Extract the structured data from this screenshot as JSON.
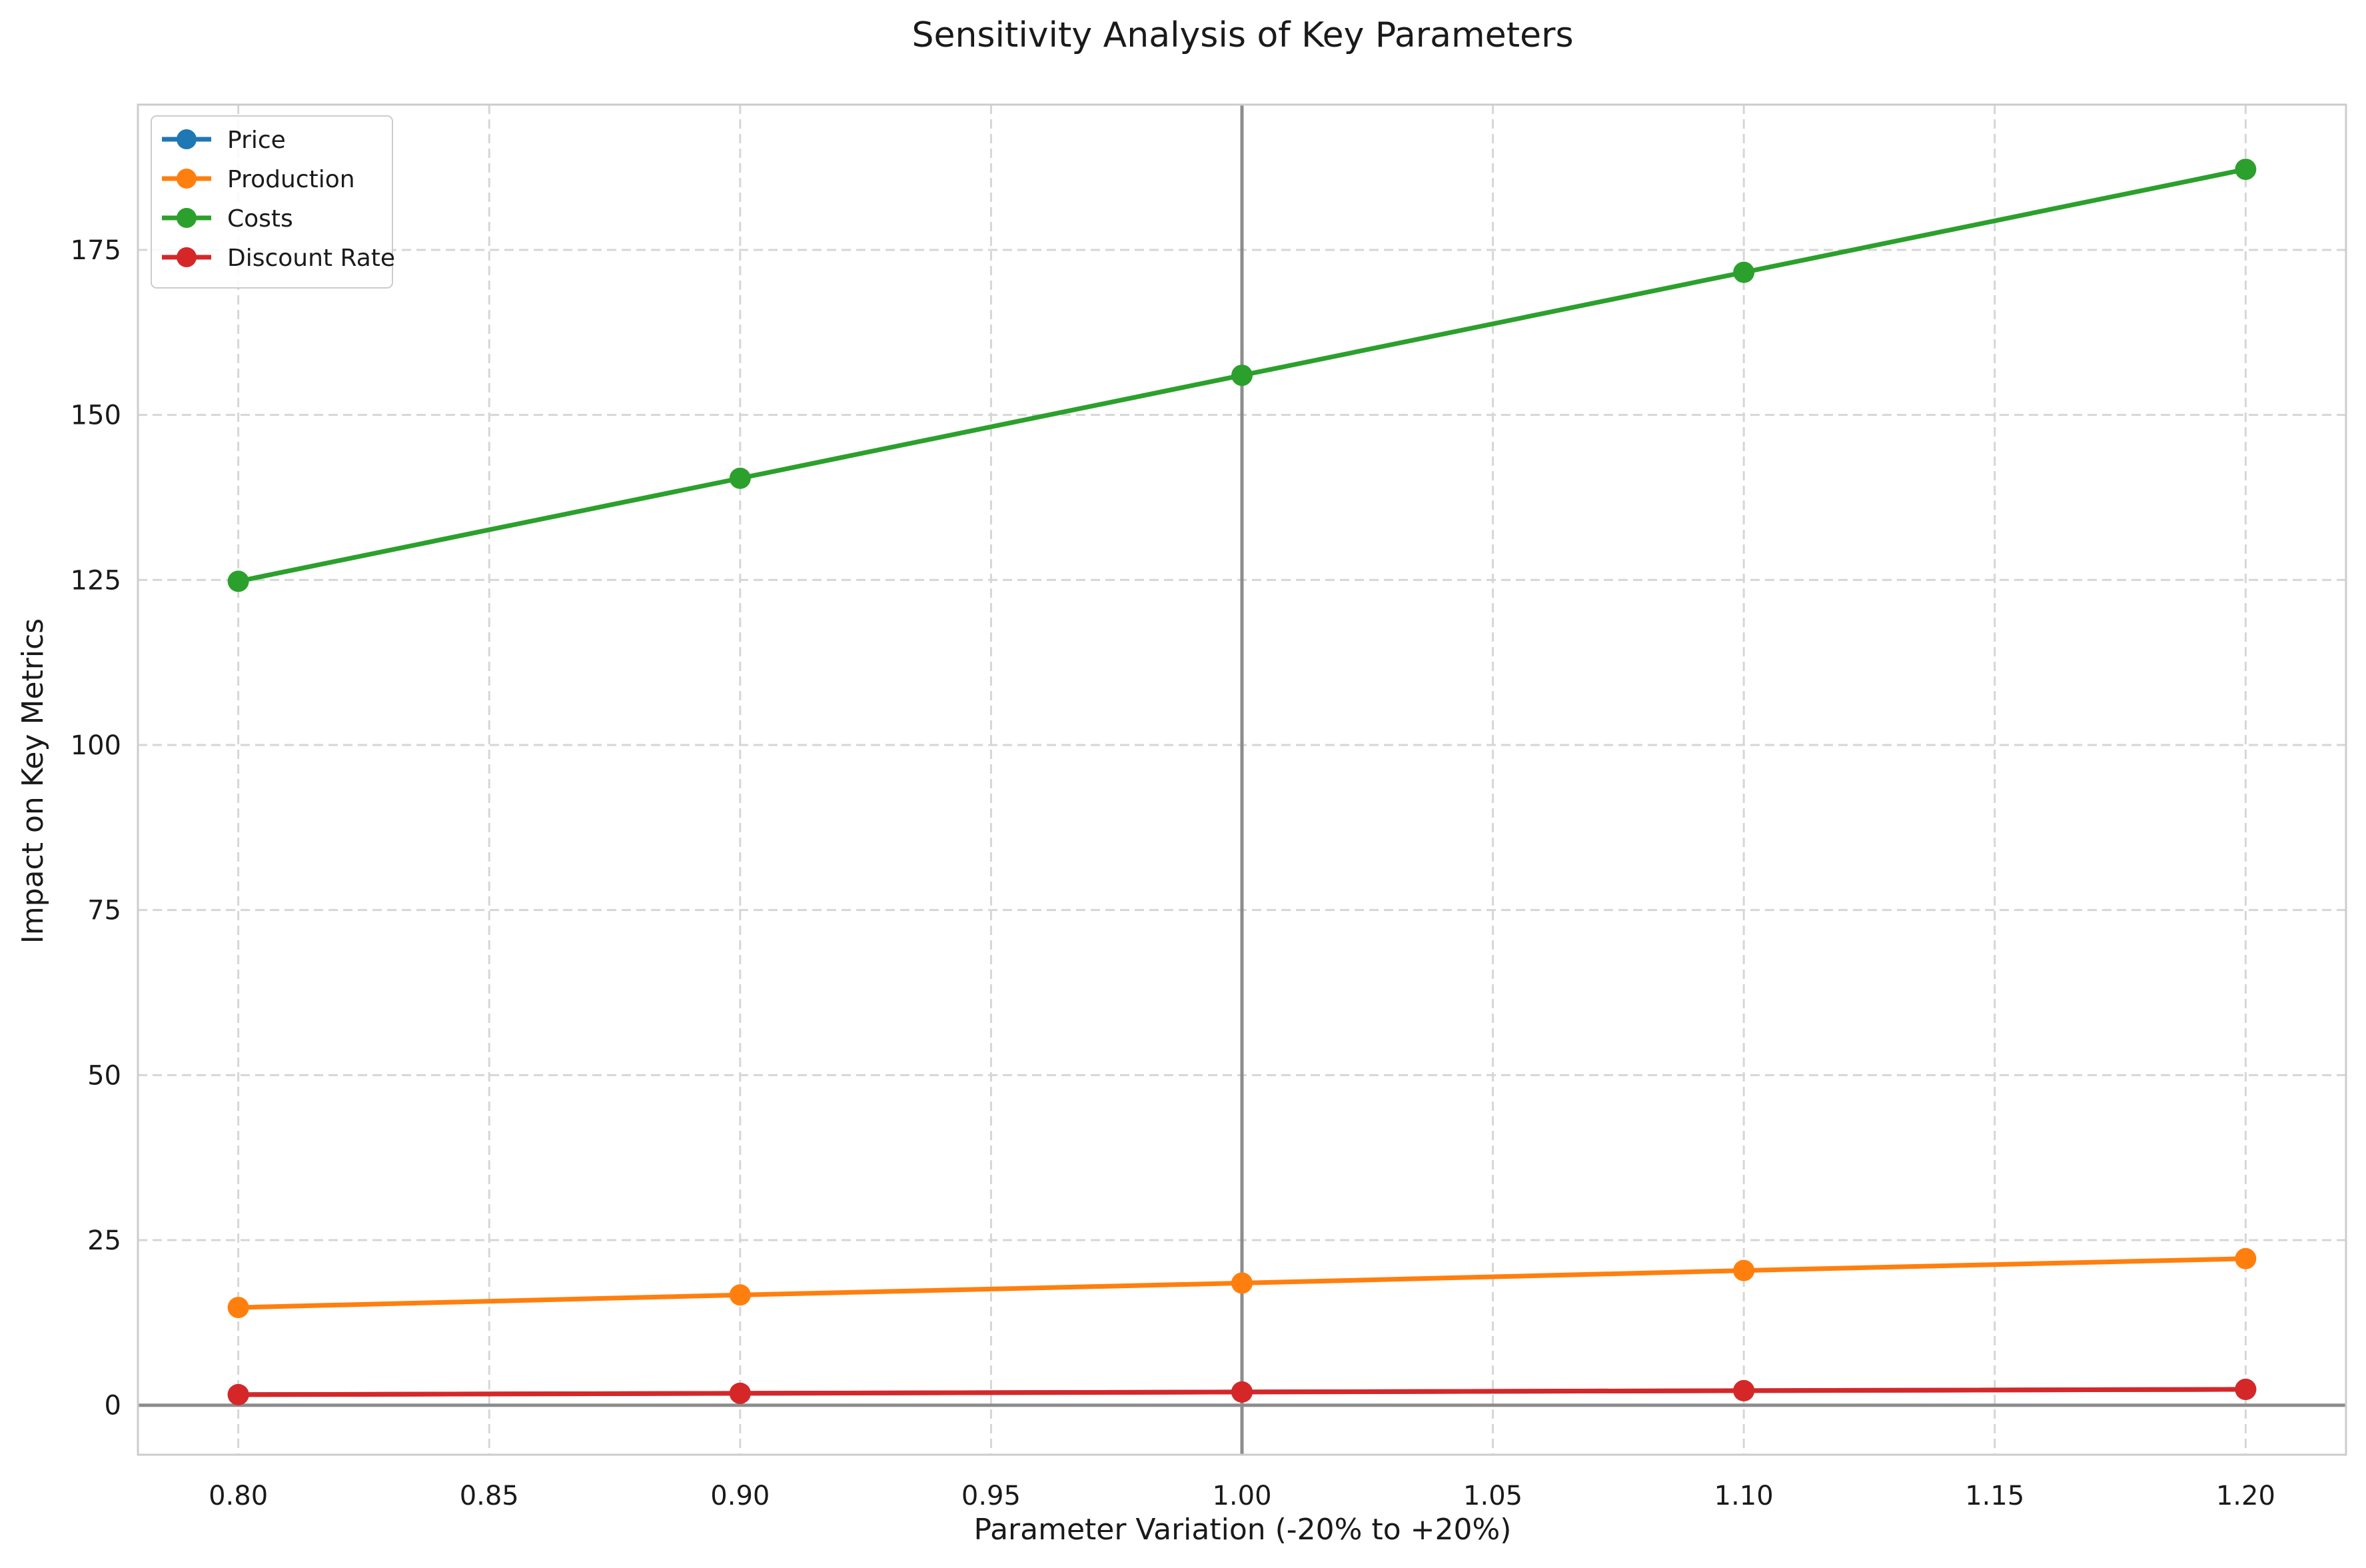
{
  "chart_data": {
    "type": "line",
    "title": "Sensitivity Analysis of Key Parameters",
    "xlabel": "Parameter Variation (-20% to +20%)",
    "ylabel": "Impact on Key Metrics",
    "x": [
      0.8,
      0.9,
      1.0,
      1.1,
      1.2
    ],
    "xlim": [
      0.78,
      1.22
    ],
    "ylim": [
      -7.5,
      197
    ],
    "xticks": [
      0.8,
      0.85,
      0.9,
      0.95,
      1.0,
      1.05,
      1.1,
      1.15,
      1.2
    ],
    "xtick_labels": [
      "0.80",
      "0.85",
      "0.90",
      "0.95",
      "1.00",
      "1.05",
      "1.10",
      "1.15",
      "1.20"
    ],
    "yticks": [
      0,
      25,
      50,
      75,
      100,
      125,
      150,
      175
    ],
    "ytick_labels": [
      "0",
      "25",
      "50",
      "75",
      "100",
      "125",
      "150",
      "175"
    ],
    "grid": true,
    "legend_position": "top-left",
    "reference_lines": {
      "vertical_x": 1.0,
      "horizontal_y": 0
    },
    "series": [
      {
        "name": "Price",
        "color": "#1f77b4",
        "values": [
          1.6,
          1.8,
          2.0,
          2.2,
          2.4
        ]
      },
      {
        "name": "Production",
        "color": "#ff7f0e",
        "values": [
          14.8,
          16.7,
          18.5,
          20.4,
          22.2
        ]
      },
      {
        "name": "Costs",
        "color": "#2ca02c",
        "values": [
          124.8,
          140.4,
          156.0,
          171.6,
          187.2
        ]
      },
      {
        "name": "Discount Rate",
        "color": "#d62728",
        "values": [
          1.6,
          1.8,
          2.0,
          2.2,
          2.4
        ]
      }
    ]
  }
}
